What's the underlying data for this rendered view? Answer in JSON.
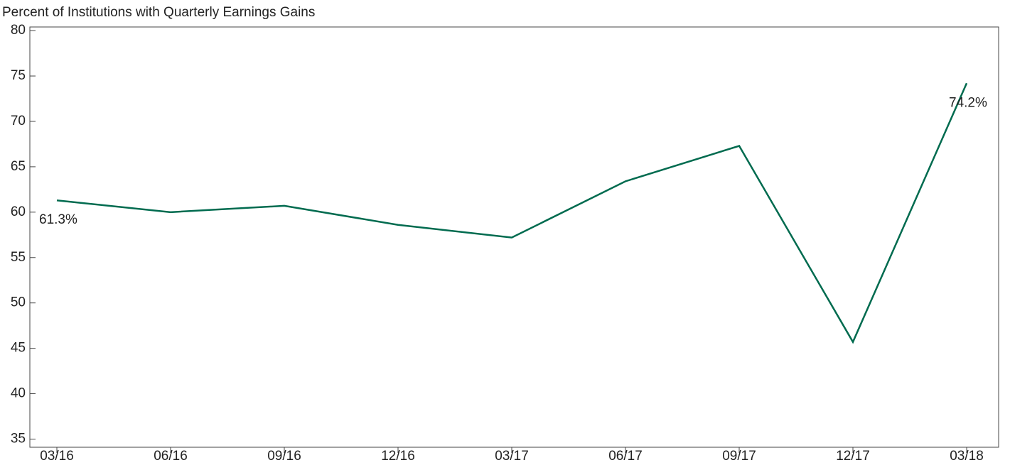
{
  "chart_data": {
    "type": "line",
    "title": "Percent of Institutions with Quarterly Earnings Gains",
    "categories": [
      "03/16",
      "06/16",
      "09/16",
      "12/16",
      "03/17",
      "06/17",
      "09/17",
      "12/17",
      "03/18"
    ],
    "series": [
      {
        "color": "#006b4f",
        "values": [
          61.3,
          60.0,
          60.7,
          58.6,
          57.2,
          63.4,
          67.3,
          45.7,
          74.2
        ],
        "value_labels": [
          "61.3%",
          null,
          null,
          null,
          null,
          null,
          null,
          null,
          "74.2%"
        ]
      }
    ],
    "ylim": [
      34.1,
      80.4
    ],
    "yticks": [
      35,
      40,
      45,
      50,
      55,
      60,
      65,
      70,
      75,
      80
    ]
  }
}
